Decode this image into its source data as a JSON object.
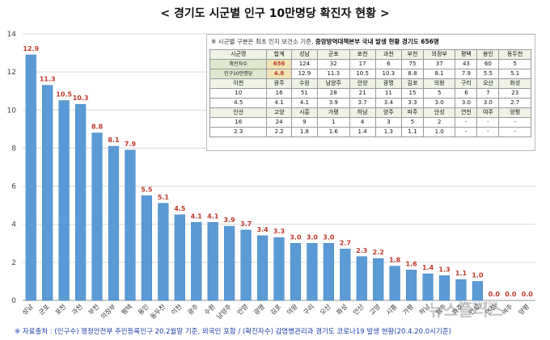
{
  "title": "< 경기도 시군별 인구 10만명당 확진자 현황 >",
  "source": "※ 자료출처 : (인구수) 행정안전부 주민등록인구 20.2월말 기준, 외국인 포함 / (확진자수) 감염병관리과 경기도 코로나19 발생 현황(20.4.20.0시기준)",
  "note_prefix": "※ 시군별 구분은 최초 인지 보건소 기준,",
  "note_bold": "중앙방역대책본부 국내 발생 현황 경기도 656명",
  "watermark": "뉴스플러스",
  "watermark_small": "출처: 행정안전부",
  "colors": {
    "bar": "#5b9bd5",
    "bar_dark": "#3f7fc0",
    "label": "#c0392b",
    "grid": "#d9d9d9"
  },
  "chart_data": {
    "type": "bar",
    "title": "< 경기도 시군별 인구 10만명당 확진자 현황 >",
    "xlabel": "",
    "ylabel": "",
    "ylim": [
      0,
      14
    ],
    "yticks": [
      0,
      2,
      4,
      6,
      8,
      10,
      12,
      14
    ],
    "grid": true,
    "categories": [
      "성남",
      "군포",
      "포천",
      "과천",
      "부천",
      "의정부",
      "평택",
      "용인",
      "동두천",
      "이천",
      "광주",
      "수원",
      "남양주",
      "안양",
      "광명",
      "김포",
      "의왕",
      "구리",
      "오산",
      "화성",
      "안산",
      "고양",
      "시흥",
      "가평",
      "하남",
      "양주",
      "파주",
      "안성",
      "연천",
      "여주",
      "양평"
    ],
    "values": [
      12.9,
      11.3,
      10.5,
      10.3,
      8.8,
      8.1,
      7.9,
      5.5,
      5.1,
      4.5,
      4.1,
      4.1,
      3.9,
      3.7,
      3.4,
      3.3,
      3.0,
      3.0,
      3.0,
      2.7,
      2.3,
      2.2,
      1.8,
      1.6,
      1.4,
      1.3,
      1.1,
      1.0,
      0.0,
      0.0,
      0.0
    ],
    "data_labels": [
      "12.9",
      "11.3",
      "10.5",
      "10.3",
      "8.8",
      "8.1",
      "7.9",
      "5.5",
      "5.1",
      "4.5",
      "4.1",
      "4.1",
      "3.9",
      "3.7",
      "3.4",
      "3.3",
      "3.0",
      "3.0",
      "3.0",
      "2.7",
      "2.3",
      "2.2",
      "1.8",
      "1.6",
      "1.4",
      "1.3",
      "1.1",
      "1.0",
      "0.0",
      "0.0",
      "0.0"
    ]
  },
  "table": {
    "rows": [
      [
        "시군명",
        "합계",
        "성남",
        "군포",
        "포천",
        "과천",
        "부천",
        "의정부",
        "평택",
        "용인",
        "동두천"
      ],
      [
        "확진자수",
        "656",
        "124",
        "32",
        "17",
        "6",
        "75",
        "37",
        "43",
        "60",
        "5"
      ],
      [
        "인구10만명당",
        "4.8",
        "12.9",
        "11.3",
        "10.5",
        "10.3",
        "8.8",
        "8.1",
        "7.9",
        "5.5",
        "5.1"
      ],
      [
        "이천",
        "광주",
        "수원",
        "남양주",
        "안양",
        "광명",
        "김포",
        "의왕",
        "구리",
        "오산",
        "화성"
      ],
      [
        "10",
        "16",
        "51",
        "28",
        "21",
        "11",
        "15",
        "5",
        "6",
        "7",
        "23"
      ],
      [
        "4.5",
        "4.1",
        "4.1",
        "3.9",
        "3.7",
        "3.4",
        "3.3",
        "3.0",
        "3.0",
        "3.0",
        "2.7"
      ],
      [
        "안산",
        "고양",
        "시흥",
        "가평",
        "하남",
        "양주",
        "파주",
        "안성",
        "연천",
        "여주",
        "양평"
      ],
      [
        "16",
        "24",
        "9",
        "1",
        "4",
        "3",
        "5",
        "2",
        "-",
        "-",
        "-"
      ],
      [
        "2.3",
        "2.2",
        "1.8",
        "1.6",
        "1.4",
        "1.3",
        "1.1",
        "1.0",
        "-",
        "-",
        "-"
      ]
    ]
  }
}
